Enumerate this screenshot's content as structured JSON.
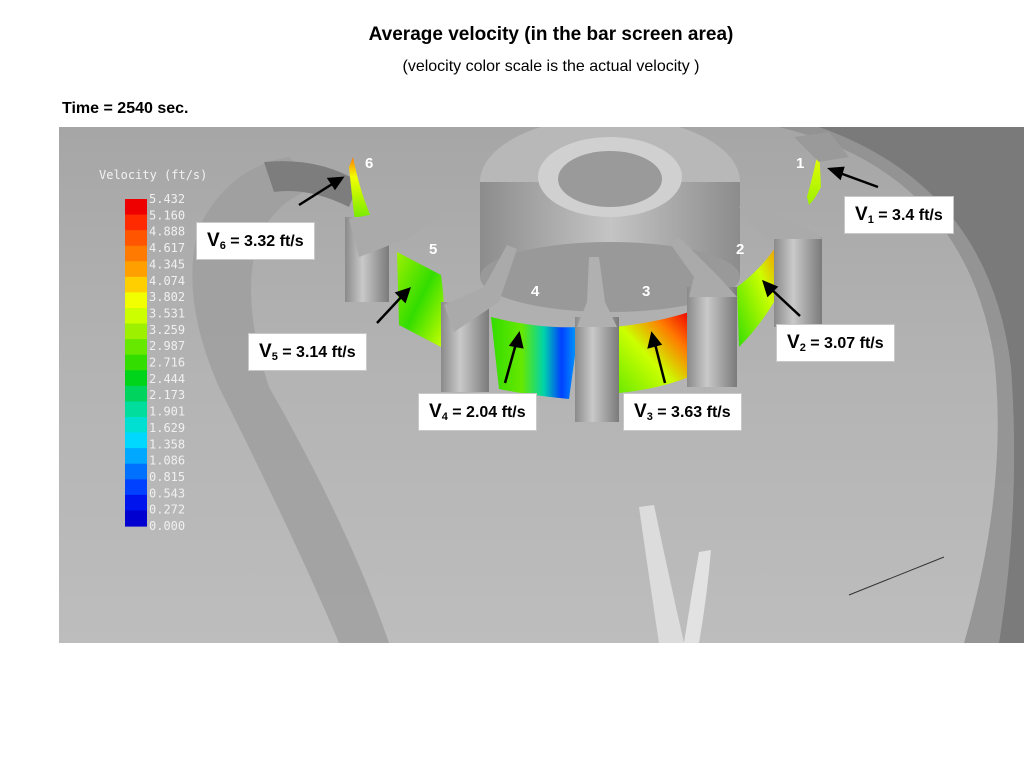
{
  "header": {
    "title": "Average velocity (in the bar screen area)",
    "subtitle": "(velocity color scale is the actual velocity )",
    "time_label": "Time = 2540 sec."
  },
  "legend": {
    "title": "Velocity (ft/s)",
    "ticks": [
      "5.432",
      "5.160",
      "4.888",
      "4.617",
      "4.345",
      "4.074",
      "3.802",
      "3.531",
      "3.259",
      "2.987",
      "2.716",
      "2.444",
      "2.173",
      "1.901",
      "1.629",
      "1.358",
      "1.086",
      "0.815",
      "0.543",
      "0.272",
      "0.000"
    ],
    "colors": [
      "#ee0000",
      "#ff2a00",
      "#ff5500",
      "#ff7a00",
      "#ffa000",
      "#ffcf00",
      "#f2ff00",
      "#ccff00",
      "#9cf000",
      "#66e800",
      "#33dd00",
      "#00d41a",
      "#00d35e",
      "#00dd9c",
      "#00e0d2",
      "#00d8ff",
      "#00a8ff",
      "#0070ff",
      "#0040ff",
      "#0014ee",
      "#0000d0"
    ]
  },
  "bays": [
    {
      "number": "1"
    },
    {
      "number": "2"
    },
    {
      "number": "3"
    },
    {
      "number": "4"
    },
    {
      "number": "5"
    },
    {
      "number": "6"
    }
  ],
  "callouts": [
    {
      "id": "v1",
      "symbol": "V",
      "subscript": "1",
      "text": " = 3.4 ft/s"
    },
    {
      "id": "v2",
      "symbol": "V",
      "subscript": "2",
      "text": " = 3.07 ft/s"
    },
    {
      "id": "v3",
      "symbol": "V",
      "subscript": "3",
      "text": " = 3.63 ft/s"
    },
    {
      "id": "v4",
      "symbol": "V",
      "subscript": "4",
      "text": " = 2.04 ft/s"
    },
    {
      "id": "v5",
      "symbol": "V",
      "subscript": "5",
      "text": " = 3.14 ft/s"
    },
    {
      "id": "v6",
      "symbol": "V",
      "subscript": "6",
      "text": " = 3.32 ft/s"
    }
  ]
}
